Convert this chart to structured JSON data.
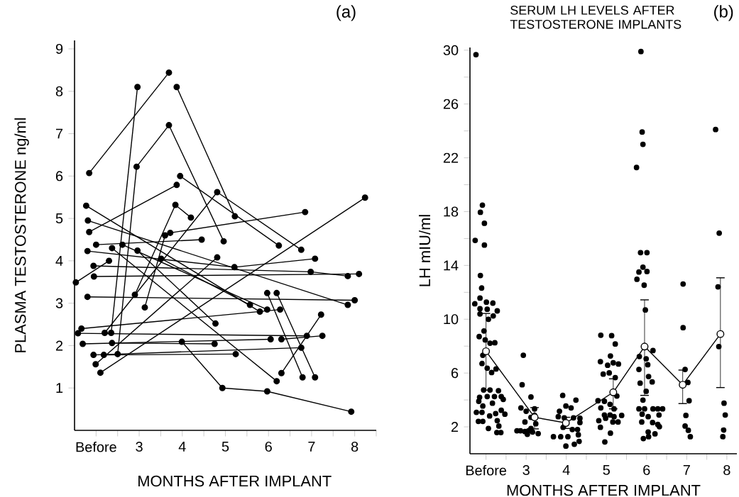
{
  "chart_data": [
    {
      "type": "line",
      "marker": "circle",
      "ylabel": "PLASMA TESTOSTERONE  ng/ml",
      "xlabel": "MONTHS AFTER IMPLANT",
      "annotations": [
        "(a)"
      ],
      "xlim": [
        1.5,
        8.5
      ],
      "ylim": [
        0,
        9.2
      ],
      "xticks": [
        {
          "value": 2,
          "label": "Before"
        },
        3,
        4,
        5,
        6,
        7,
        8,
        {
          "value": 2.5,
          "label": null
        },
        {
          "value": 3.5,
          "label": null
        },
        {
          "value": 4.5,
          "label": null
        },
        {
          "value": 5.5,
          "label": null
        },
        {
          "value": 6.5,
          "label": null
        },
        {
          "value": 7.5,
          "label": null
        },
        {
          "value": 8.5,
          "label": null
        }
      ],
      "yticks": [
        1,
        2,
        3,
        4,
        5,
        6,
        7,
        8,
        9
      ],
      "series": [
        {
          "color": "#000000",
          "x": [
            1.84,
            3.69
          ],
          "values": [
            6.07,
            8.44
          ]
        },
        {
          "color": "#000000",
          "x": [
            2.35,
            2.96
          ],
          "values": [
            2.3,
            8.1
          ]
        },
        {
          "color": "#000000",
          "x": [
            2.5,
            2.94,
            3.69,
            4.96
          ],
          "values": [
            1.8,
            6.22,
            7.2,
            4.46
          ]
        },
        {
          "color": "#000000",
          "x": [
            3.87,
            5.22
          ],
          "values": [
            8.1,
            5.05
          ]
        },
        {
          "color": "#000000",
          "x": [
            3.95,
            6.24
          ],
          "values": [
            6.0,
            4.36
          ]
        },
        {
          "color": "#000000",
          "x": [
            1.84,
            3.87
          ],
          "values": [
            4.68,
            5.79
          ]
        },
        {
          "color": "#000000",
          "x": [
            2.2,
            4.81,
            6.76
          ],
          "values": [
            2.3,
            5.62,
            4.26
          ]
        },
        {
          "color": "#000000",
          "x": [
            2.1,
            8.24
          ],
          "values": [
            1.36,
            5.49
          ]
        },
        {
          "color": "#000000",
          "x": [
            3.72,
            6.85
          ],
          "values": [
            4.66,
            5.15
          ]
        },
        {
          "color": "#000000",
          "x": [
            2.9,
            3.84,
            4.2
          ],
          "values": [
            3.2,
            5.32,
            5.02
          ]
        },
        {
          "color": "#000000",
          "x": [
            1.77,
            5.8
          ],
          "values": [
            5.3,
            2.8
          ]
        },
        {
          "color": "#000000",
          "x": [
            1.81,
            7.84
          ],
          "values": [
            4.95,
            2.96
          ]
        },
        {
          "color": "#000000",
          "x": [
            2.0,
            4.45
          ],
          "values": [
            4.38,
            4.5
          ]
        },
        {
          "color": "#000000",
          "x": [
            1.8,
            5.21,
            7.08
          ],
          "values": [
            4.23,
            3.85,
            4.05
          ]
        },
        {
          "color": "#000000",
          "x": [
            1.94,
            6.98,
            7.84
          ],
          "values": [
            3.88,
            3.74,
            3.64
          ]
        },
        {
          "color": "#000000",
          "x": [
            1.95,
            8.1
          ],
          "values": [
            3.63,
            3.69
          ]
        },
        {
          "color": "#000000",
          "x": [
            1.8,
            8.0
          ],
          "values": [
            3.15,
            3.07
          ]
        },
        {
          "color": "#000000",
          "x": [
            1.66,
            6.27
          ],
          "values": [
            2.4,
            2.85
          ]
        },
        {
          "color": "#000000",
          "x": [
            1.58,
            6.89
          ],
          "values": [
            2.29,
            2.23
          ]
        },
        {
          "color": "#000000",
          "x": [
            1.69,
            6.05
          ],
          "values": [
            2.04,
            2.15
          ]
        },
        {
          "color": "#000000",
          "x": [
            1.94,
            6.76
          ],
          "values": [
            1.78,
            1.95
          ]
        },
        {
          "color": "#000000",
          "x": [
            2.18,
            5.24
          ],
          "values": [
            1.78,
            1.8
          ]
        },
        {
          "color": "#000000",
          "x": [
            2.37,
            4.75
          ],
          "values": [
            2.06,
            2.04
          ]
        },
        {
          "color": "#000000",
          "x": [
            3.99,
            4.93,
            5.97,
            7.92
          ],
          "values": [
            2.09,
            1.0,
            0.92,
            0.44
          ]
        },
        {
          "color": "#000000",
          "x": [
            6.3,
            7.22
          ],
          "values": [
            1.35,
            2.73
          ]
        },
        {
          "color": "#000000",
          "x": [
            5.97,
            6.79
          ],
          "values": [
            3.24,
            1.25
          ]
        },
        {
          "color": "#000000",
          "x": [
            6.19,
            7.08
          ],
          "values": [
            3.24,
            1.25
          ]
        },
        {
          "color": "#000000",
          "x": [
            6.3,
            7.25
          ],
          "values": [
            2.15,
            2.23
          ]
        },
        {
          "color": "#000000",
          "x": [
            1.99,
            4.81
          ],
          "values": [
            1.56,
            4.08
          ]
        },
        {
          "color": "#000000",
          "x": [
            2.37,
            6.19
          ],
          "values": [
            4.3,
            1.16
          ]
        },
        {
          "color": "#000000",
          "x": [
            2.96,
            4.77
          ],
          "values": [
            4.24,
            2.52
          ]
        },
        {
          "color": "#000000",
          "x": [
            3.13,
            3.6
          ],
          "values": [
            2.9,
            4.6
          ]
        },
        {
          "color": "#000000",
          "x": [
            3.51,
            5.57
          ],
          "values": [
            4.05,
            2.96
          ]
        },
        {
          "color": "#000000",
          "x": [
            2.61,
            5.97
          ],
          "values": [
            4.38,
            2.85
          ]
        },
        {
          "color": "#000000",
          "x": [
            1.53,
            2.3
          ],
          "values": [
            3.49,
            4.0
          ]
        }
      ]
    },
    {
      "type": "scatter",
      "marker": "circle",
      "title": "SERUM LH LEVELS AFTER TESTOSTERONE IMPLANTS",
      "ylabel": "LH mIU/ml",
      "xlabel": "MONTHS AFTER IMPLANT",
      "annotations": [
        "(b)"
      ],
      "xlim": [
        1.6,
        8.25
      ],
      "ylim": [
        0,
        30.2
      ],
      "xticks": [
        {
          "value": 2,
          "label": "Before"
        },
        3,
        4,
        5,
        6,
        7,
        8,
        {
          "value": 2.5,
          "label": null
        },
        {
          "value": 3.5,
          "label": null
        },
        {
          "value": 4.5,
          "label": null
        },
        {
          "value": 5.5,
          "label": null
        },
        {
          "value": 6.5,
          "label": null
        },
        {
          "value": 7.5,
          "label": null
        }
      ],
      "yticks": [
        2,
        6,
        10,
        14,
        18,
        22,
        26,
        30,
        {
          "value": 4,
          "label": null
        },
        {
          "value": 8,
          "label": null
        },
        {
          "value": 12,
          "label": null
        },
        {
          "value": 16,
          "label": null
        },
        {
          "value": 20,
          "label": null
        },
        {
          "value": 24,
          "label": null
        },
        {
          "value": 28,
          "label": null
        }
      ],
      "series": [
        {
          "color": "#000000",
          "x": [
            1.75,
            1.91,
            1.86,
            1.96,
            1.73,
            1.96,
            1.86,
            1.89,
            1.85,
            1.72,
            2.01,
            2.17,
            1.85,
            2.03,
            2.28,
            1.85,
            2.18,
            2.06,
            1.95,
            1.83,
            1.98,
            2.1,
            2.22,
            1.92,
            1.9,
            2.03,
            2.14,
            2.25,
            1.94,
            2.1,
            2.31,
            1.84,
            2.03,
            2.21,
            2.38,
            1.82,
            1.92,
            2.16,
            2.43,
            1.76,
            1.9,
            2.09,
            2.24,
            2.38,
            2.47,
            1.81,
            1.92,
            2.06,
            2.28,
            2.32,
            2.27,
            2.37,
            2.93,
            2.9,
            3.12,
            2.87,
            3.0,
            3.21,
            2.97,
            3.12,
            2.77,
            2.86,
            2.97,
            3.06,
            3.16,
            3.03,
            3.3,
            3.12,
            3.24,
            3.21,
            3.91,
            4.24,
            3.83,
            3.99,
            4.12,
            3.8,
            3.95,
            4.18,
            4.34,
            3.92,
            4.15,
            4.34,
            3.68,
            3.86,
            4.04,
            4.3,
            3.99,
            4.2,
            4.32,
            4.28,
            4.86,
            5.13,
            5.22,
            5.1,
            4.85,
            5.03,
            5.17,
            5.3,
            4.92,
            5.07,
            5.22,
            4.79,
            4.95,
            4.86,
            5.09,
            5.26,
            5.19,
            4.95,
            5.09,
            5.19,
            5.38,
            4.81,
            4.98,
            5.16,
            5.29,
            4.85,
            5.1,
            4.96,
            5.86,
            5.89,
            5.91,
            5.75,
            5.85,
            6.01,
            5.91,
            6.01,
            5.81,
            5.76,
            5.94,
            5.97,
            5.82,
            6.16,
            5.99,
            6.03,
            5.81,
            6.05,
            5.84,
            6.14,
            5.99,
            5.91,
            5.81,
            5.95,
            6.16,
            6.28,
            6.4,
            5.89,
            6.04,
            6.31,
            5.88,
            6.15,
            6.32,
            6.28,
            6.04,
            5.92,
            6.05,
            6.21,
            6.91,
            6.91,
            6.96,
            7.03,
            7.06,
            6.98,
            6.96,
            7.04,
            7.09,
            7.72,
            7.81,
            7.78,
            7.8,
            7.93,
            7.96,
            7.92,
            7.9
          ],
          "values": [
            29.67,
            18.48,
            17.95,
            17.13,
            15.86,
            15.51,
            13.25,
            12.32,
            11.57,
            11.15,
            11.27,
            11.2,
            10.78,
            10.74,
            10.62,
            10.39,
            10.25,
            10.0,
            9.13,
            8.71,
            8.46,
            8.22,
            8.25,
            7.32,
            6.71,
            6.36,
            6.04,
            6.3,
            4.74,
            4.74,
            4.69,
            4.2,
            4.25,
            4.25,
            4.25,
            3.9,
            3.55,
            3.76,
            4.04,
            3.08,
            3.08,
            2.81,
            2.99,
            3.23,
            2.94,
            2.41,
            2.41,
            1.88,
            2.46,
            2.06,
            1.58,
            1.58,
            7.32,
            5.13,
            4.22,
            3.41,
            3.16,
            3.34,
            2.36,
            2.71,
            1.71,
            1.71,
            1.65,
            1.71,
            1.62,
            1.45,
            1.5,
            1.88,
            2.23,
            2.85,
            4.34,
            3.99,
            3.16,
            3.55,
            3.41,
            2.76,
            2.67,
            2.67,
            2.64,
            1.97,
            1.8,
            2.32,
            1.27,
            1.27,
            1.27,
            1.41,
            0.57,
            0.71,
            0.92,
            1.8,
            8.81,
            8.78,
            8.16,
            7.27,
            6.85,
            6.58,
            6.76,
            6.67,
            5.92,
            6.01,
            5.66,
            3.94,
            3.9,
            3.41,
            3.67,
            4.29,
            3.34,
            2.88,
            2.88,
            2.76,
            2.85,
            2.46,
            2.64,
            2.36,
            2.36,
            1.97,
            1.53,
            0.88,
            29.9,
            23.92,
            23.0,
            21.28,
            14.95,
            14.95,
            13.87,
            13.55,
            13.51,
            12.97,
            12.53,
            10.69,
            7.23,
            7.67,
            7.06,
            6.62,
            6.27,
            5.74,
            5.25,
            5.34,
            4.64,
            3.99,
            3.34,
            3.34,
            3.34,
            3.34,
            3.34,
            2.94,
            2.76,
            2.88,
            2.36,
            2.32,
            2.01,
            2.18,
            1.62,
            1.13,
            1.27,
            1.48,
            12.62,
            9.37,
            6.27,
            5.3,
            3.94,
            2.85,
            2.06,
            1.74,
            1.27,
            24.1,
            16.4,
            12.41,
            7.97,
            3.76,
            2.88,
            1.76,
            1.27
          ]
        },
        {
          "type": "line",
          "color": "#000000",
          "x": [
            2.0,
            3.21,
            3.99,
            5.17,
            5.95,
            6.9,
            7.84
          ],
          "values": [
            7.62,
            2.71,
            2.29,
            4.57,
            7.97,
            5.13,
            8.9
          ],
          "errors": [
            [
              4.73,
              10.43
            ],
            [
              1.85,
              3.43
            ],
            [
              1.88,
              2.71
            ],
            [
              3.34,
              5.57
            ],
            [
              4.34,
              11.44
            ],
            [
              3.73,
              6.22
            ],
            [
              4.92,
              13.08
            ]
          ]
        }
      ]
    }
  ]
}
